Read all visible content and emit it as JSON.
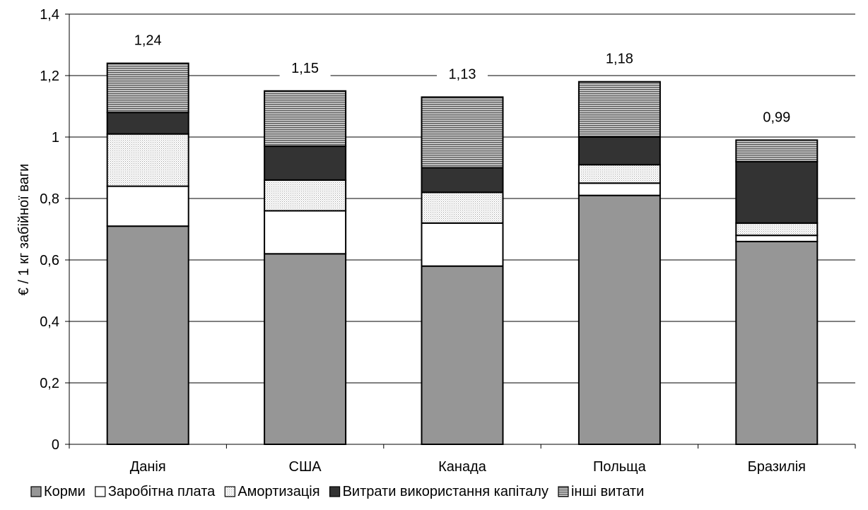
{
  "chart_data": {
    "type": "bar",
    "stacked": true,
    "title": "",
    "xlabel": "",
    "ylabel": "€ / 1 кг забійної ваги",
    "ylim": [
      0,
      1.4
    ],
    "yticks": [
      0,
      0.2,
      0.4,
      0.6,
      0.8,
      1,
      1.2,
      1.4
    ],
    "ytick_labels": [
      "0",
      "0,2",
      "0,4",
      "0,6",
      "0,8",
      "1",
      "1,2",
      "1,4"
    ],
    "grid": true,
    "legend_position": "bottom",
    "categories": [
      "Данія",
      "США",
      "Канада",
      "Польща",
      "Бразилія"
    ],
    "totals": [
      1.24,
      1.15,
      1.13,
      1.18,
      0.99
    ],
    "total_labels": [
      "1,24",
      "1,15",
      "1,13",
      "1,18",
      "0,99"
    ],
    "series": [
      {
        "name": "Корми",
        "values": [
          0.71,
          0.62,
          0.58,
          0.81,
          0.66
        ],
        "color": "#969696",
        "pattern": "solid"
      },
      {
        "name": "Заробітна плата",
        "values": [
          0.13,
          0.14,
          0.14,
          0.04,
          0.02
        ],
        "color": "#ffffff",
        "pattern": "solid"
      },
      {
        "name": "Амортизація",
        "values": [
          0.17,
          0.1,
          0.1,
          0.06,
          0.04
        ],
        "color": "#e6e6e6",
        "pattern": "dots"
      },
      {
        "name": "Витрати використання капіталу",
        "values": [
          0.07,
          0.11,
          0.08,
          0.09,
          0.2
        ],
        "color": "#333333",
        "pattern": "solid"
      },
      {
        "name": "інші витати",
        "values": [
          0.16,
          0.18,
          0.23,
          0.18,
          0.07
        ],
        "color": "#808080",
        "pattern": "hlines"
      }
    ]
  }
}
